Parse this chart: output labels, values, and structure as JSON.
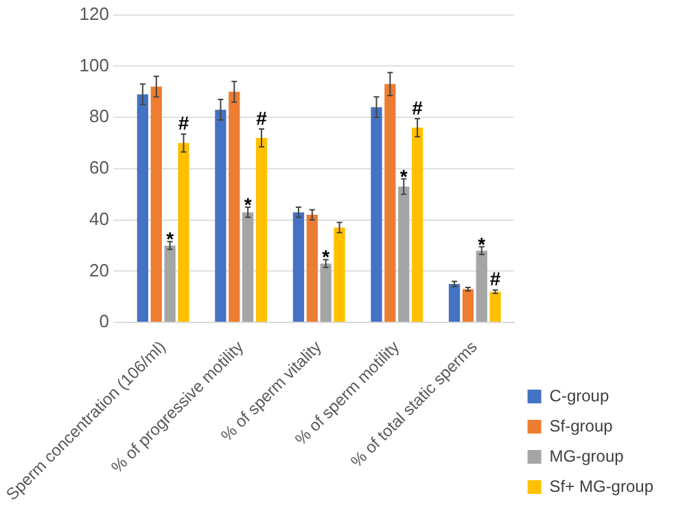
{
  "chart_data": {
    "type": "bar",
    "categories": [
      "Sperm concentration (106/ml)",
      "% of progressive motility",
      "% of sperm vitality",
      "% of sperm motility",
      "% of total static sperms"
    ],
    "series": [
      {
        "name": "C-group",
        "color": "#4472c4",
        "values": [
          89,
          83,
          43,
          84,
          15
        ],
        "errors": [
          4,
          4,
          2,
          4,
          1
        ]
      },
      {
        "name": "Sf-group",
        "color": "#ed7d31",
        "values": [
          92,
          90,
          42,
          93,
          13
        ],
        "errors": [
          4,
          4,
          2,
          4.5,
          0.7
        ]
      },
      {
        "name": "MG-group",
        "color": "#a5a5a5",
        "values": [
          30,
          43,
          23,
          53,
          28
        ],
        "errors": [
          1.5,
          2,
          1.5,
          3,
          1.5
        ]
      },
      {
        "name": "Sf+ MG-group",
        "color": "#ffc000",
        "values": [
          70,
          72,
          37,
          76,
          12
        ],
        "errors": [
          3.5,
          3.5,
          2,
          3.5,
          0.7
        ]
      }
    ],
    "ylim": [
      0,
      120
    ],
    "yticks": [
      0,
      20,
      40,
      60,
      80,
      100,
      120
    ],
    "grid": "y",
    "legend": "right",
    "annotations": [
      {
        "text": "*",
        "x": "Sperm concentration (106/ml)",
        "y": 31.5
      },
      {
        "text": "#",
        "x": "Sperm concentration (106/ml)",
        "y": 73.5
      },
      {
        "text": "*",
        "x": "% of progressive motility",
        "y": 45
      },
      {
        "text": "#",
        "x": "% of progressive motility",
        "y": 75.5
      },
      {
        "text": "*",
        "x": "% of sperm vitality",
        "y": 24.5
      },
      {
        "text": "*",
        "x": "% of sperm motility",
        "y": 56
      },
      {
        "text": "#",
        "x": "% of sperm motility",
        "y": 79.5
      },
      {
        "text": "*",
        "x": "% of total static sperms",
        "y": 29.5
      },
      {
        "text": "#",
        "x": "% of total static sperms",
        "y": 12.7
      }
    ]
  }
}
